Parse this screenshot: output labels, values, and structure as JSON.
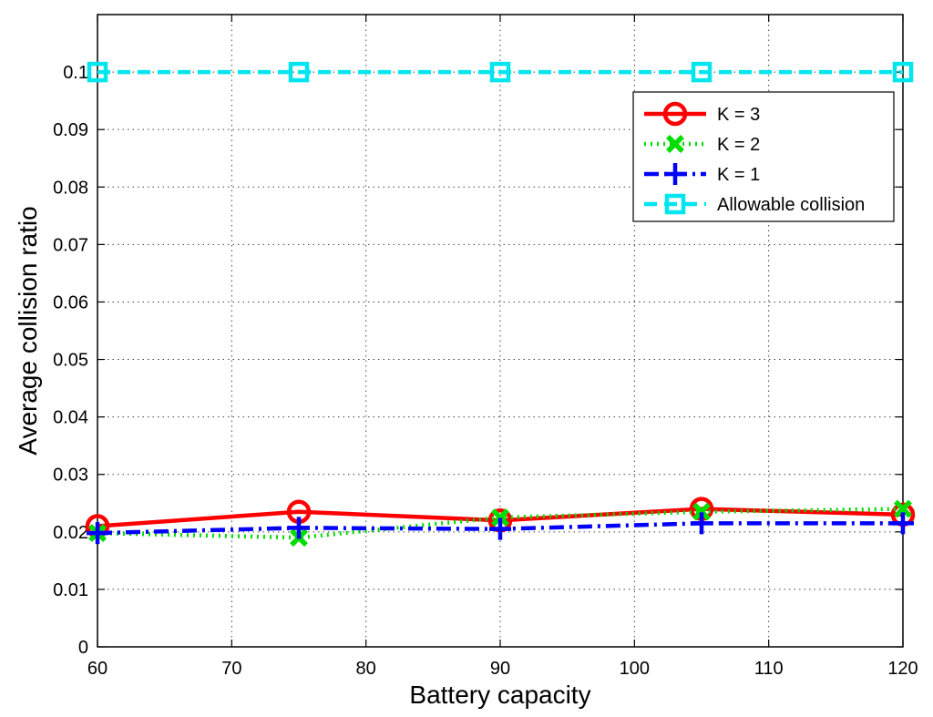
{
  "chart_data": {
    "type": "line",
    "title": "",
    "xlabel": "Battery capacity",
    "ylabel": "Average collision ratio",
    "xlim": [
      60,
      120
    ],
    "ylim": [
      0,
      0.11
    ],
    "xticks": [
      60,
      70,
      80,
      90,
      100,
      110,
      120
    ],
    "yticks": [
      0,
      0.01,
      0.02,
      0.03,
      0.04,
      0.05,
      0.06,
      0.07,
      0.08,
      0.09,
      0.1
    ],
    "xtick_labels": [
      "60",
      "70",
      "80",
      "90",
      "100",
      "110",
      "120"
    ],
    "ytick_labels": [
      "0",
      "0.01",
      "0.02",
      "0.03",
      "0.04",
      "0.05",
      "0.06",
      "0.07",
      "0.08",
      "0.09",
      "0.1"
    ],
    "grid": true,
    "legend_position": "top-right",
    "x": [
      60,
      75,
      90,
      105,
      120
    ],
    "series": [
      {
        "name": "K = 3",
        "values": [
          0.021,
          0.0235,
          0.022,
          0.024,
          0.023
        ],
        "color": "#ff0000",
        "line_style": "solid",
        "marker": "circle"
      },
      {
        "name": "K = 2",
        "values": [
          0.0198,
          0.019,
          0.0225,
          0.0235,
          0.024
        ],
        "color": "#00dd00",
        "line_style": "dotted",
        "marker": "x"
      },
      {
        "name": "K = 1",
        "values": [
          0.0198,
          0.0207,
          0.0205,
          0.0215,
          0.0215
        ],
        "color": "#0000ff",
        "line_style": "dashdot",
        "marker": "plus"
      },
      {
        "name": "Allowable collision",
        "values": [
          0.1,
          0.1,
          0.1,
          0.1,
          0.1
        ],
        "color": "#00e5ee",
        "line_style": "dashed",
        "marker": "square"
      }
    ]
  }
}
